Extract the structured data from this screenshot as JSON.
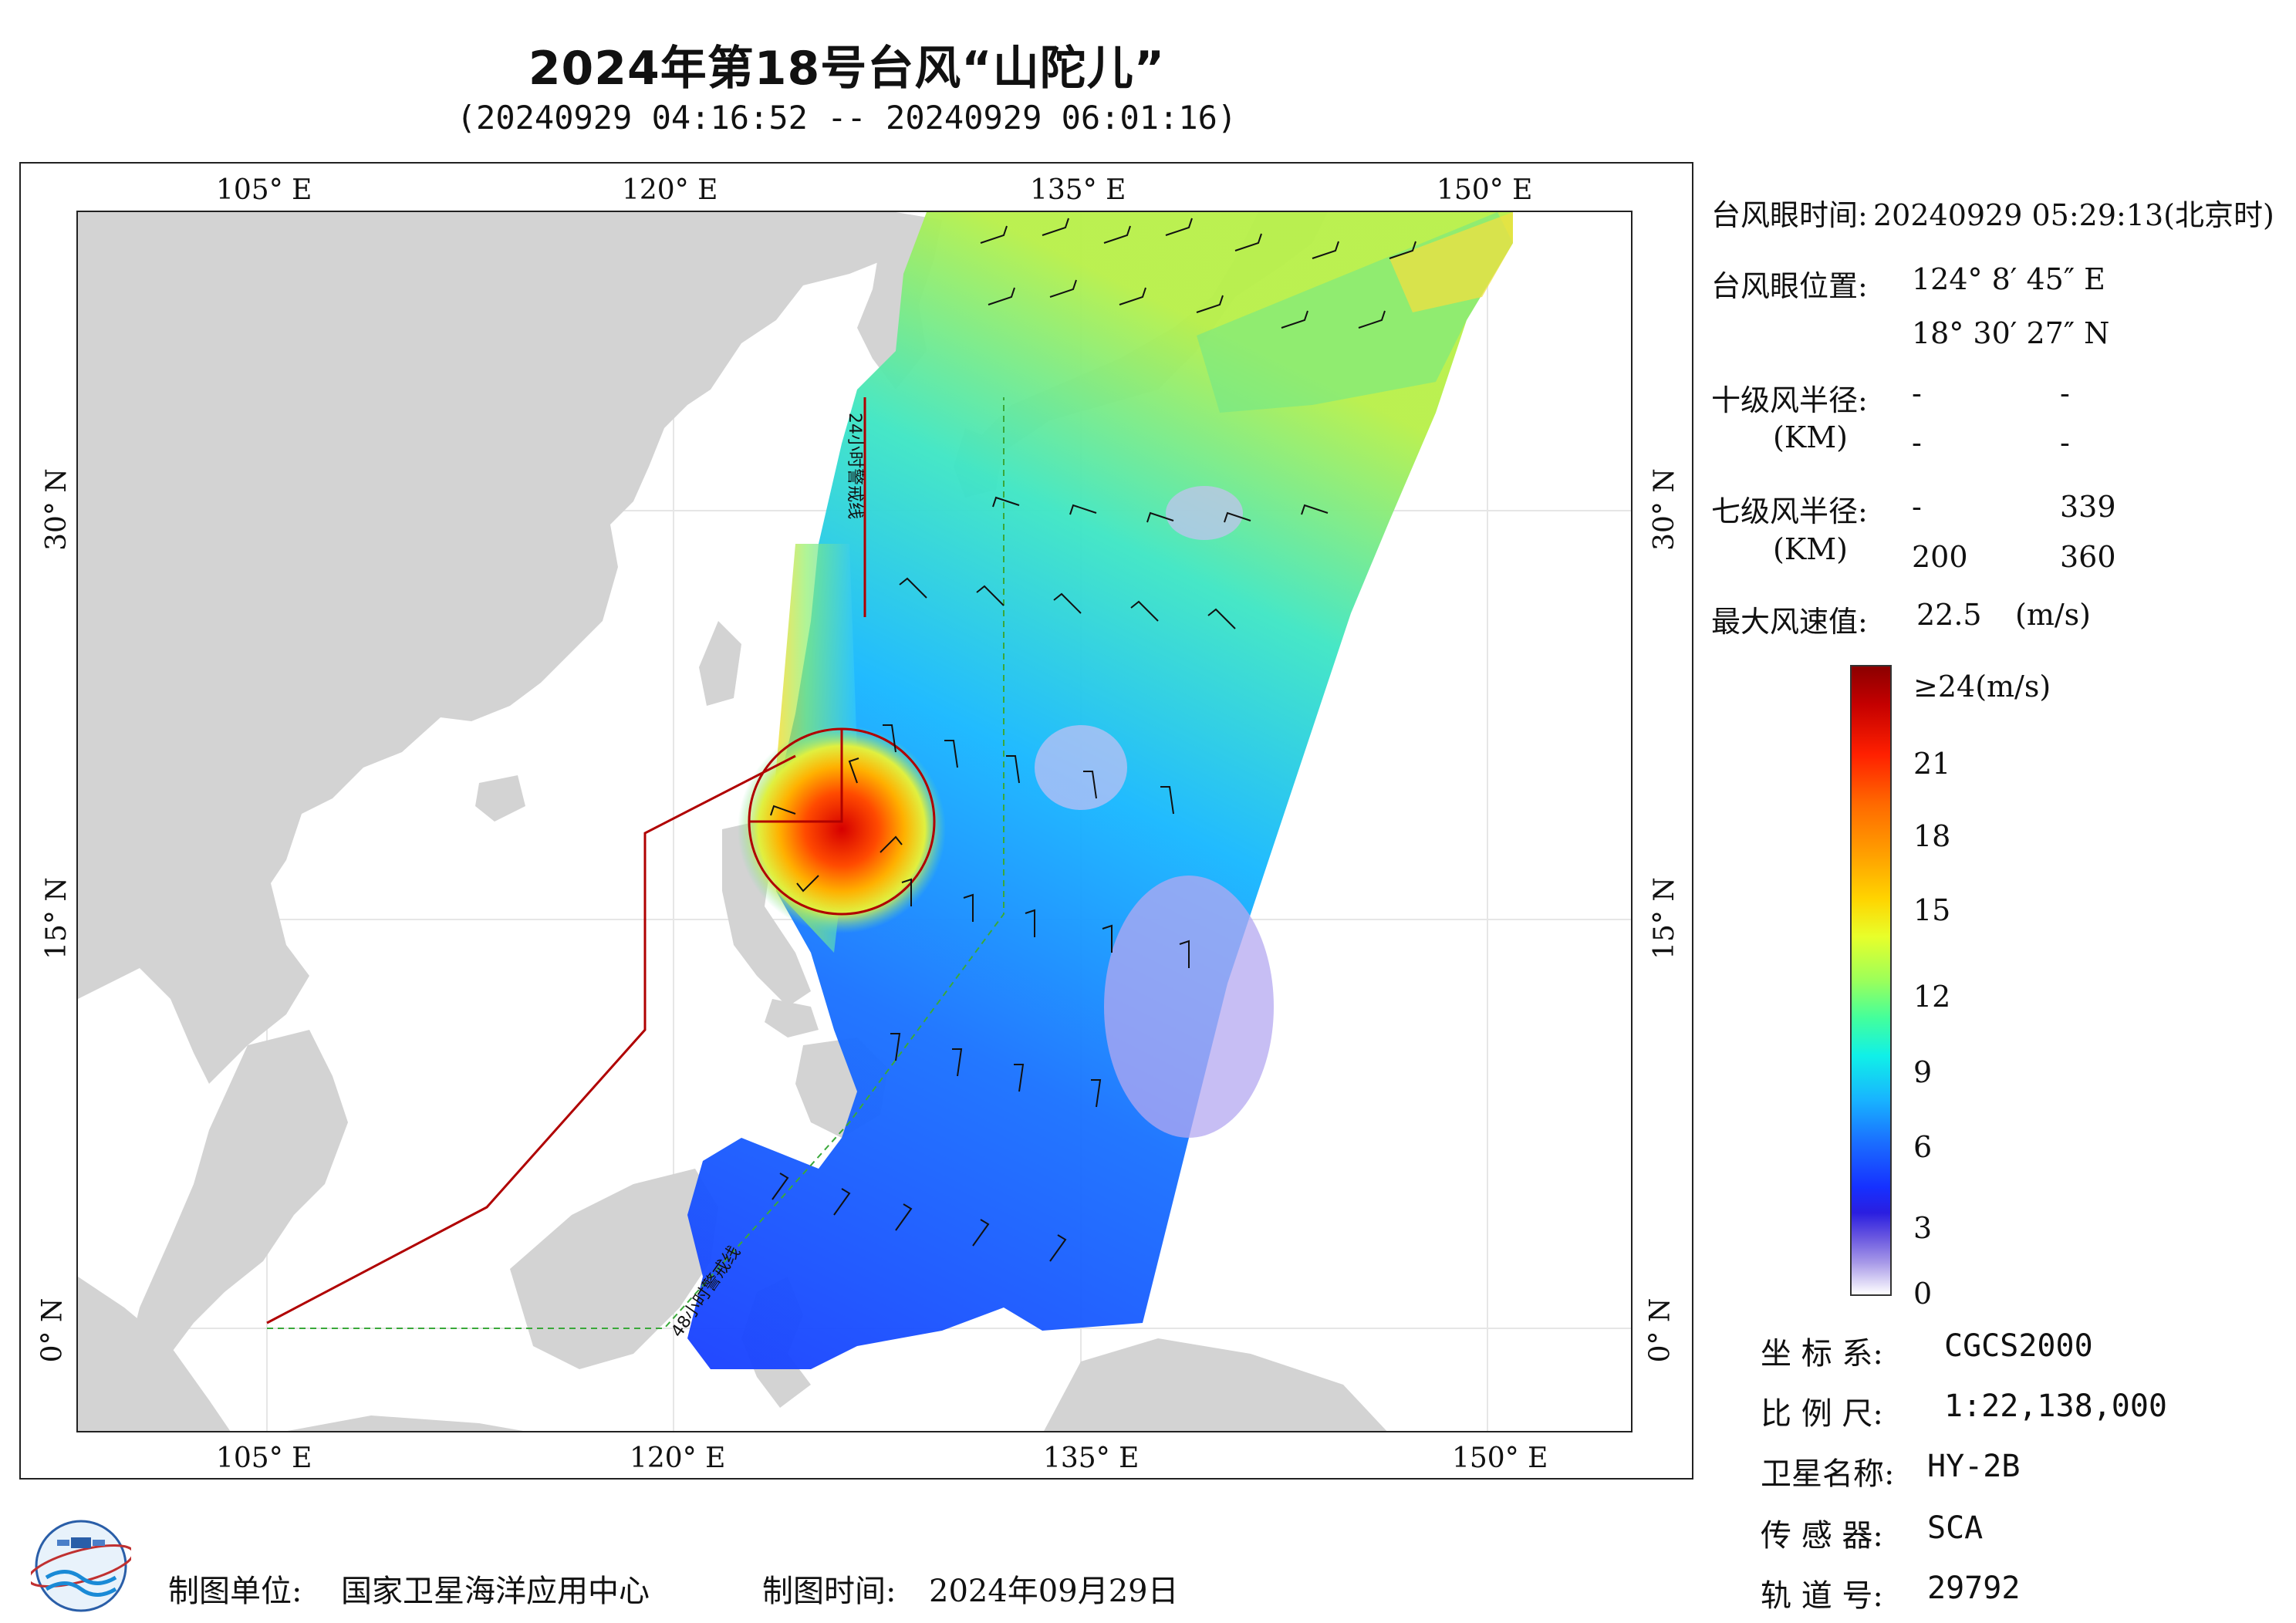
{
  "header": {
    "title": "2024年第18号台风“山陀儿”",
    "subtitle": "(20240929 04:16:52 -- 20240929 06:01:16)"
  },
  "map": {
    "lon_ticks_top": [
      "105° E",
      "120° E",
      "135° E",
      "150° E"
    ],
    "lon_ticks_bottom": [
      "105° E",
      "120° E",
      "135° E",
      "150° E"
    ],
    "lat_ticks_left": [
      "30° N",
      "15° N",
      "0° N"
    ],
    "lat_ticks_right": [
      "30° N",
      "15° N",
      "0° N"
    ],
    "warning_line_24h": "24小时警戒线",
    "warning_line_48h": "48小时警戒线",
    "colors": {
      "land": "#d3d3d3",
      "sea": "#ffffff",
      "warning_line": "#b00000",
      "green_line": "#3aa83a"
    }
  },
  "info": {
    "eye_time_label": "台风眼时间:",
    "eye_time_value": "20240929 05:29:13(北京时)",
    "eye_pos_label": "台风眼位置:",
    "eye_pos_lon": "124° 8′ 45″ E",
    "eye_pos_lat": "18° 30′ 27″ N",
    "r10_label": "十级风半径:",
    "r10_unit": "(KM)",
    "r10_values": [
      "-",
      "-",
      "-",
      "-"
    ],
    "r7_label": "七级风半径:",
    "r7_unit": "(KM)",
    "r7_values": [
      "-",
      "339",
      "200",
      "360"
    ],
    "max_wind_label": "最大风速值:",
    "max_wind_value": "22.5",
    "max_wind_unit": "(m/s)"
  },
  "colorbar": {
    "labels": [
      "≥24(m/s)",
      "21",
      "18",
      "15",
      "12",
      "9",
      "6",
      "3",
      "0"
    ]
  },
  "meta": {
    "coord_label": "坐 标 系:",
    "coord_value": "CGCS2000",
    "scale_label": "比 例 尺:",
    "scale_value": "1:22,138,000",
    "satellite_label": "卫星名称:",
    "satellite_value": "HY-2B",
    "sensor_label": "传 感 器:",
    "sensor_value": "SCA",
    "orbit_label": "轨 道 号:",
    "orbit_value": "29792"
  },
  "footer": {
    "producer_label": "制图单位:",
    "producer_value": "国家卫星海洋应用中心",
    "date_label": "制图时间:",
    "date_value": "2024年09月29日"
  }
}
